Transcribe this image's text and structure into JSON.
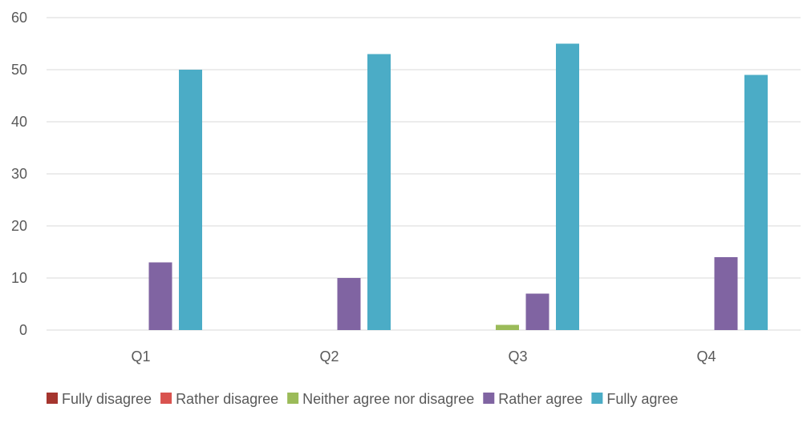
{
  "chart_data": {
    "type": "bar",
    "categories": [
      "Q1",
      "Q2",
      "Q3",
      "Q4"
    ],
    "series": [
      {
        "name": "Fully disagree",
        "color": "#a5352e",
        "values": [
          0,
          0,
          0,
          0
        ]
      },
      {
        "name": "Rather disagree",
        "color": "#d9534f",
        "values": [
          0,
          0,
          0,
          0
        ]
      },
      {
        "name": "Neither agree nor disagree",
        "color": "#9bbb59",
        "values": [
          0,
          0,
          1,
          0
        ]
      },
      {
        "name": "Rather agree",
        "color": "#8064a2",
        "values": [
          13,
          10,
          7,
          14
        ]
      },
      {
        "name": "Fully agree",
        "color": "#4bacc6",
        "values": [
          50,
          53,
          55,
          49
        ]
      }
    ],
    "ylim": [
      0,
      60
    ],
    "yticks": [
      0,
      10,
      20,
      30,
      40,
      50,
      60
    ],
    "grid": true,
    "legend_position": "bottom"
  }
}
